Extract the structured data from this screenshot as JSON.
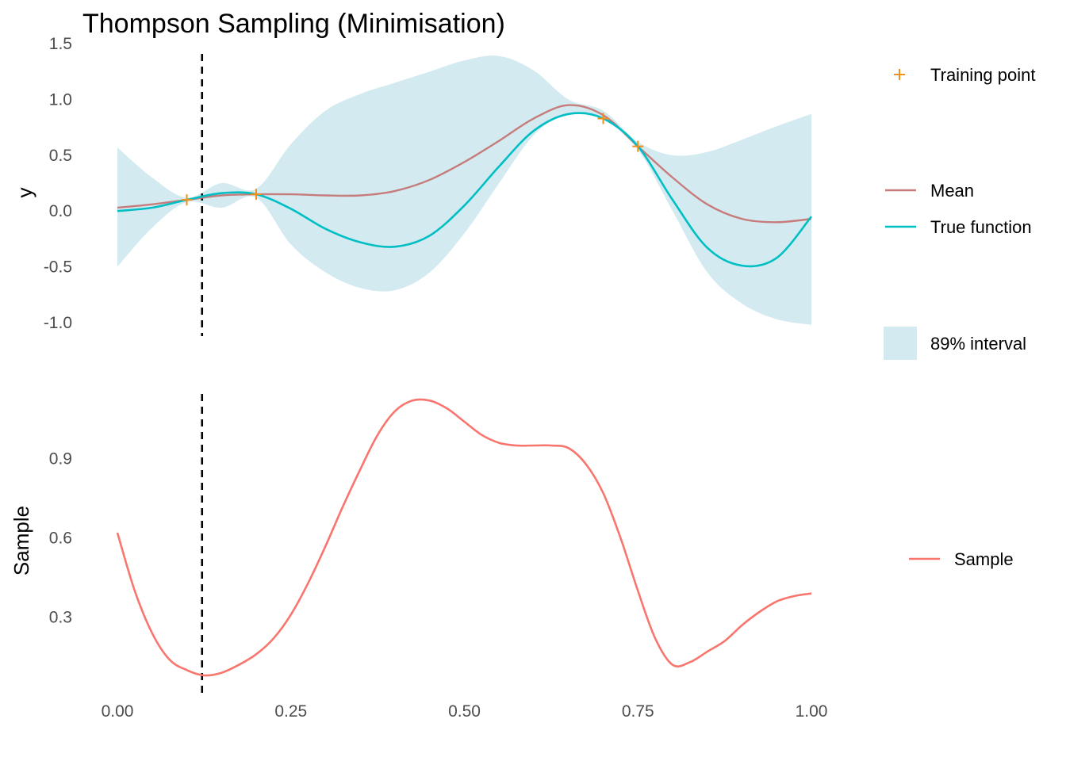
{
  "title": "Thompson Sampling (Minimisation)",
  "colors": {
    "mean": "#c77c7c",
    "true_function": "#00bfc4",
    "interval": "#d2eaf0",
    "training_point": "#f28e1c",
    "sample": "#f8766d",
    "vline": "#000000",
    "tick_text": "#4d4d4d"
  },
  "chart_data": [
    {
      "type": "line",
      "panel": "top",
      "title": "Thompson Sampling (Minimisation)",
      "xlabel": "",
      "ylabel": "y",
      "xlim": [
        0,
        1
      ],
      "ylim": [
        -1.15,
        1.48
      ],
      "y_ticks": [
        -1.0,
        -0.5,
        0.0,
        0.5,
        1.0,
        1.5
      ],
      "y_tick_labels": [
        "-1.0",
        "-0.5",
        "0.0",
        "0.5",
        "1.0",
        "1.5"
      ],
      "grid": false,
      "vline_x": 0.122,
      "legend": [
        {
          "key": "training",
          "label": "Training point"
        },
        {
          "key": "mean",
          "label": "Mean"
        },
        {
          "key": "true",
          "label": "True function"
        },
        {
          "key": "interval",
          "label": "89% interval"
        }
      ],
      "training_points": {
        "x": [
          0.1,
          0.2,
          0.7,
          0.75
        ],
        "y": [
          0.1,
          0.15,
          0.83,
          0.58
        ]
      },
      "series": [
        {
          "name": "Mean",
          "x": [
            0,
            0.05,
            0.1,
            0.15,
            0.2,
            0.25,
            0.3,
            0.35,
            0.4,
            0.45,
            0.5,
            0.55,
            0.6,
            0.65,
            0.7,
            0.75,
            0.8,
            0.85,
            0.9,
            0.95,
            1.0
          ],
          "y": [
            0.03,
            0.06,
            0.1,
            0.14,
            0.15,
            0.15,
            0.14,
            0.14,
            0.18,
            0.28,
            0.44,
            0.63,
            0.83,
            0.95,
            0.86,
            0.58,
            0.3,
            0.06,
            -0.07,
            -0.1,
            -0.07
          ]
        },
        {
          "name": "True function",
          "x": [
            0,
            0.05,
            0.1,
            0.15,
            0.2,
            0.25,
            0.3,
            0.35,
            0.4,
            0.45,
            0.5,
            0.55,
            0.6,
            0.65,
            0.7,
            0.75,
            0.8,
            0.85,
            0.9,
            0.95,
            1.0
          ],
          "y": [
            0.0,
            0.03,
            0.1,
            0.16,
            0.15,
            0.02,
            -0.16,
            -0.28,
            -0.32,
            -0.22,
            0.05,
            0.4,
            0.72,
            0.87,
            0.83,
            0.58,
            0.1,
            -0.33,
            -0.49,
            -0.42,
            -0.05
          ]
        },
        {
          "name": "89% interval",
          "x": [
            0,
            0.05,
            0.1,
            0.15,
            0.2,
            0.25,
            0.3,
            0.35,
            0.4,
            0.45,
            0.5,
            0.55,
            0.6,
            0.65,
            0.7,
            0.75,
            0.8,
            0.85,
            0.9,
            0.95,
            1.0
          ],
          "lower": [
            -0.5,
            -0.15,
            0.08,
            0.03,
            0.12,
            -0.3,
            -0.55,
            -0.69,
            -0.71,
            -0.55,
            -0.2,
            0.25,
            0.68,
            0.88,
            0.82,
            0.55,
            0.0,
            -0.55,
            -0.83,
            -0.97,
            -1.02
          ],
          "upper": [
            0.57,
            0.3,
            0.12,
            0.25,
            0.2,
            0.6,
            0.9,
            1.05,
            1.15,
            1.25,
            1.35,
            1.39,
            1.26,
            1.0,
            0.9,
            0.62,
            0.5,
            0.53,
            0.64,
            0.76,
            0.87
          ]
        }
      ]
    },
    {
      "type": "line",
      "panel": "bottom",
      "xlabel": "",
      "ylabel": "Sample",
      "xlim": [
        0,
        1
      ],
      "ylim": [
        0.02,
        1.16
      ],
      "x_ticks": [
        0,
        0.25,
        0.5,
        0.75,
        1.0
      ],
      "x_tick_labels": [
        "0.00",
        "0.25",
        "0.50",
        "0.75",
        "1.00"
      ],
      "y_ticks": [
        0.3,
        0.6,
        0.9
      ],
      "y_tick_labels": [
        "0.3",
        "0.6",
        "0.9"
      ],
      "grid": false,
      "vline_x": 0.122,
      "legend": [
        {
          "key": "sample",
          "label": "Sample"
        }
      ],
      "series": [
        {
          "name": "Sample",
          "x": [
            0,
            0.025,
            0.05,
            0.075,
            0.1,
            0.125,
            0.15,
            0.175,
            0.2,
            0.225,
            0.25,
            0.275,
            0.3,
            0.325,
            0.35,
            0.375,
            0.4,
            0.425,
            0.45,
            0.475,
            0.5,
            0.525,
            0.55,
            0.575,
            0.6,
            0.625,
            0.65,
            0.675,
            0.7,
            0.725,
            0.75,
            0.775,
            0.8,
            0.825,
            0.85,
            0.875,
            0.9,
            0.925,
            0.95,
            0.975,
            1.0
          ],
          "y": [
            0.62,
            0.4,
            0.24,
            0.14,
            0.1,
            0.08,
            0.09,
            0.12,
            0.16,
            0.22,
            0.31,
            0.43,
            0.57,
            0.72,
            0.86,
            0.99,
            1.08,
            1.12,
            1.12,
            1.09,
            1.04,
            0.99,
            0.96,
            0.95,
            0.95,
            0.95,
            0.94,
            0.88,
            0.77,
            0.6,
            0.4,
            0.22,
            0.12,
            0.13,
            0.17,
            0.21,
            0.27,
            0.32,
            0.36,
            0.38,
            0.39
          ]
        }
      ]
    }
  ]
}
